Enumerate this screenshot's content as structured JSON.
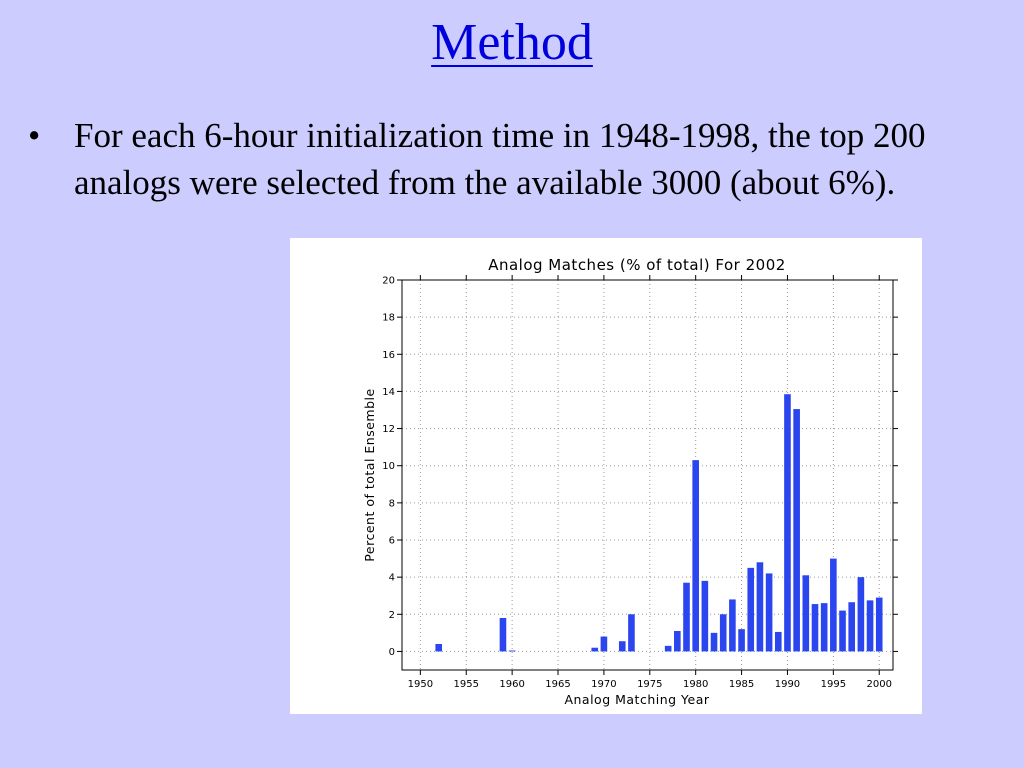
{
  "slide": {
    "title": "Method",
    "bullets": [
      "For each 6-hour initialization time in 1948-1998, the top 200 analogs were selected from the available 3000 (about 6%)."
    ],
    "bullet_symbol": "•"
  },
  "chart_data": {
    "type": "bar",
    "title": "Analog Matches (% of total) For 2002",
    "xlabel": "Analog Matching Year",
    "ylabel": "Percent of total Ensemble",
    "xlim": [
      1948,
      2001.5
    ],
    "ylim": [
      -1,
      20
    ],
    "xticks": [
      1950,
      1955,
      1960,
      1965,
      1970,
      1975,
      1980,
      1985,
      1990,
      1995,
      2000
    ],
    "yticks": [
      0,
      2,
      4,
      6,
      8,
      10,
      12,
      14,
      16,
      18,
      20
    ],
    "grid": true,
    "bar_color": "#2b46ee",
    "x": [
      1952,
      1959,
      1960,
      1969,
      1970,
      1972,
      1973,
      1977,
      1978,
      1979,
      1980,
      1981,
      1982,
      1983,
      1984,
      1985,
      1986,
      1987,
      1988,
      1989,
      1990,
      1991,
      1992,
      1993,
      1994,
      1995,
      1996,
      1997,
      1998,
      1999,
      2000
    ],
    "values": [
      0.4,
      1.8,
      0.05,
      0.2,
      0.8,
      0.55,
      2.0,
      0.3,
      1.1,
      3.7,
      10.3,
      3.8,
      1.0,
      2.0,
      2.8,
      1.2,
      4.5,
      4.8,
      4.2,
      1.05,
      13.85,
      13.05,
      4.1,
      2.55,
      2.6,
      5.0,
      2.2,
      2.65,
      4.0,
      2.75,
      2.9
    ]
  }
}
